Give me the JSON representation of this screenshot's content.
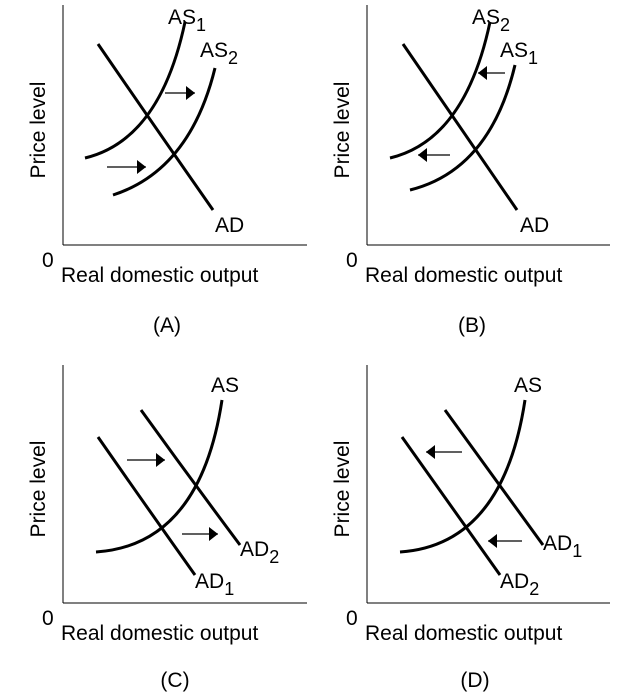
{
  "panels": [
    {
      "caption": "(A)",
      "y_axis_label": "Price level",
      "x_axis_label": "Real domestic output",
      "origin_label": "0",
      "curves": [
        {
          "label": "AS",
          "subscript": "1"
        },
        {
          "label": "AS",
          "subscript": "2"
        },
        {
          "label": "AD"
        }
      ]
    },
    {
      "caption": "(B)",
      "y_axis_label": "Price level",
      "x_axis_label": "Real domestic output",
      "origin_label": "0",
      "curves": [
        {
          "label": "AS",
          "subscript": "2"
        },
        {
          "label": "AS",
          "subscript": "1"
        },
        {
          "label": "AD"
        }
      ]
    },
    {
      "caption": "(C)",
      "y_axis_label": "Price level",
      "x_axis_label": "Real domestic output",
      "origin_label": "0",
      "curves": [
        {
          "label": "AS"
        },
        {
          "label": "AD",
          "subscript": "1"
        },
        {
          "label": "AD",
          "subscript": "2"
        }
      ]
    },
    {
      "caption": "(D)",
      "y_axis_label": "Price level",
      "x_axis_label": "Real domestic output",
      "origin_label": "0",
      "curves": [
        {
          "label": "AS"
        },
        {
          "label": "AD",
          "subscript": "2"
        },
        {
          "label": "AD",
          "subscript": "1"
        }
      ]
    }
  ]
}
